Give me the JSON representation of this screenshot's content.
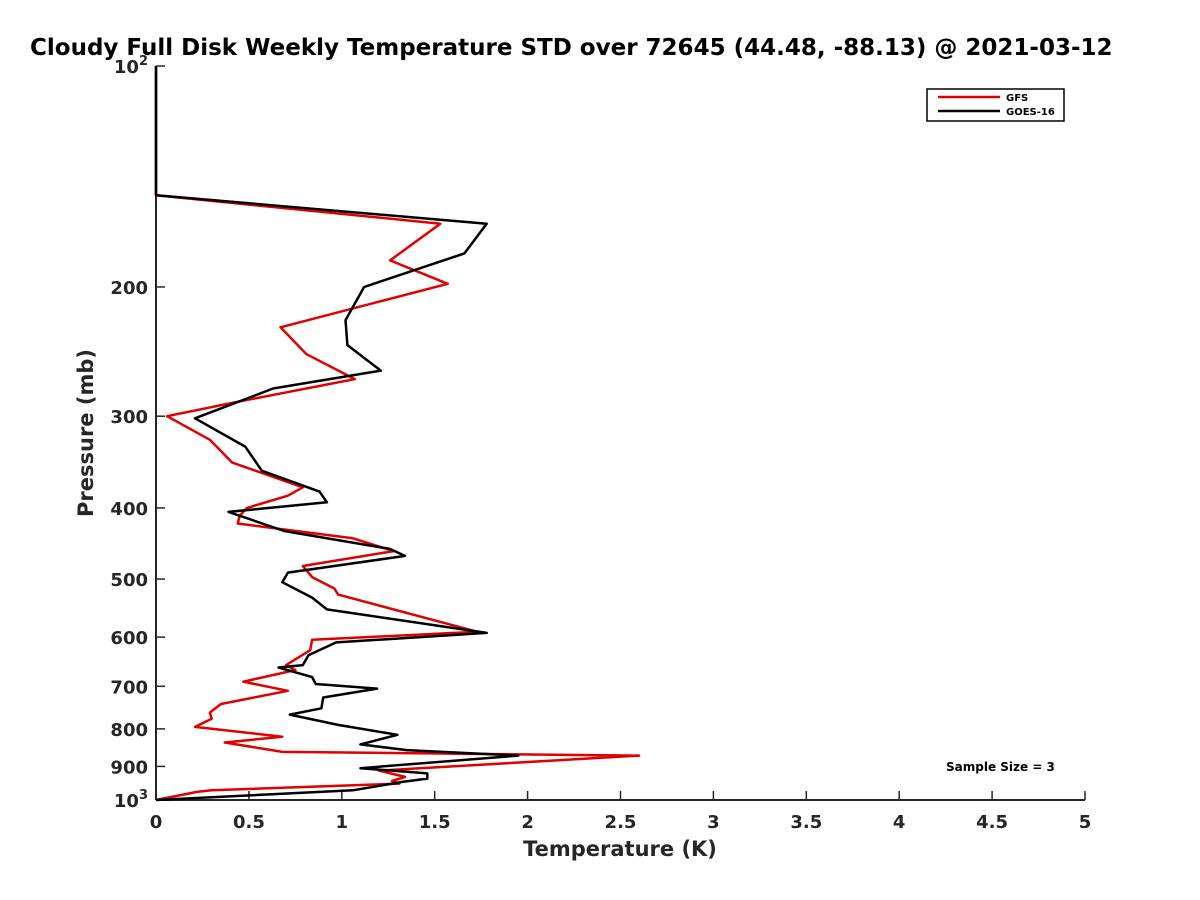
{
  "chart_data": {
    "type": "line",
    "title": "Cloudy Full Disk Weekly Temperature STD over 72645 (44.48, -88.13) @ 2021-03-12",
    "xlabel": "Temperature (K)",
    "ylabel": "Pressure (mb)",
    "xlim": [
      0,
      5
    ],
    "ylim": [
      100,
      1000
    ],
    "y_scale": "log",
    "y_reversed": true,
    "x_ticks": [
      "0",
      "0.5",
      "1",
      "1.5",
      "2",
      "2.5",
      "3",
      "3.5",
      "4",
      "4.5",
      "5"
    ],
    "y_ticks": [
      {
        "value": 100,
        "base": "10",
        "exp": "2"
      },
      {
        "value": 200,
        "label": "200"
      },
      {
        "value": 300,
        "label": "300"
      },
      {
        "value": 400,
        "label": "400"
      },
      {
        "value": 500,
        "label": "500"
      },
      {
        "value": 600,
        "label": "600"
      },
      {
        "value": 700,
        "label": "700"
      },
      {
        "value": 800,
        "label": "800"
      },
      {
        "value": 900,
        "label": "900"
      },
      {
        "value": 1000,
        "base": "10",
        "exp": "3"
      }
    ],
    "legend_position": "top-right",
    "grid": false,
    "series": [
      {
        "name": "GFS",
        "color": "#e00000",
        "x": [
          0,
          0,
          1.53,
          1.26,
          1.57,
          0.67,
          0.81,
          1.07,
          0.43,
          0.06,
          0.29,
          0.41,
          0.79,
          0.71,
          0.49,
          0.45,
          0.44,
          1.06,
          1.28,
          0.79,
          0.84,
          0.96,
          0.98,
          1.73,
          0.84,
          0.83,
          0.7,
          0.75,
          0.47,
          0.71,
          0.35,
          0.29,
          0.3,
          0.21,
          0.68,
          0.37,
          0.68,
          2.6,
          1.2,
          1.34,
          1.27,
          1.31,
          0.3,
          0.22,
          0
        ],
        "y": [
          100,
          150,
          164,
          184,
          198,
          227,
          247,
          267,
          287,
          300,
          323,
          347,
          375,
          385,
          400,
          410,
          420,
          440,
          458,
          480,
          497,
          515,
          525,
          590,
          605,
          625,
          655,
          665,
          690,
          710,
          740,
          760,
          775,
          795,
          820,
          835,
          860,
          870,
          912,
          930,
          942,
          950,
          970,
          975,
          1000
        ]
      },
      {
        "name": "GOES-16",
        "color": "#000000",
        "x": [
          0,
          0,
          1.78,
          1.66,
          1.12,
          1.02,
          1.03,
          1.21,
          0.63,
          0.21,
          0.48,
          0.57,
          0.88,
          0.92,
          0.39,
          0.69,
          1.26,
          1.34,
          0.71,
          0.68,
          0.84,
          0.92,
          1.78,
          0.97,
          0.82,
          0.79,
          0.66,
          0.84,
          0.86,
          1.19,
          0.9,
          0.89,
          0.72,
          0.98,
          1.3,
          1.1,
          1.35,
          1.95,
          1.1,
          1.46,
          1.46,
          1.32,
          1.22,
          1.06,
          0
        ],
        "y": [
          100,
          150,
          164,
          180,
          200,
          222,
          240,
          260,
          275,
          302,
          330,
          356,
          380,
          393,
          405,
          430,
          455,
          465,
          490,
          505,
          530,
          550,
          592,
          610,
          635,
          655,
          660,
          680,
          695,
          705,
          725,
          750,
          765,
          790,
          815,
          840,
          855,
          870,
          905,
          920,
          935,
          945,
          955,
          970,
          1000
        ]
      }
    ],
    "annotation": "Sample Size = 3"
  }
}
